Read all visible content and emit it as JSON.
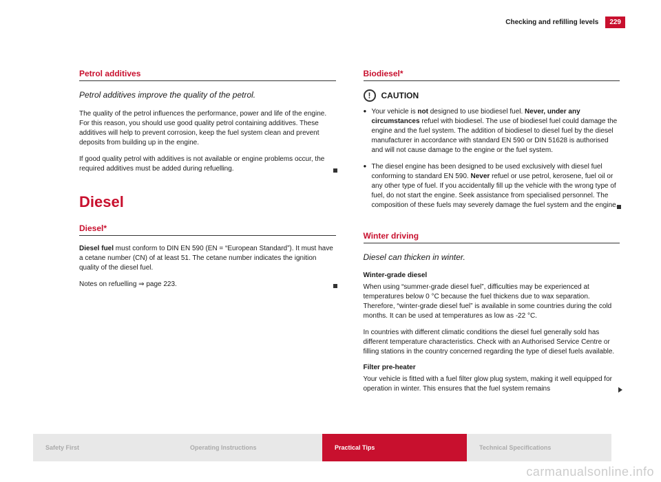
{
  "header": {
    "title": "Checking and refilling levels",
    "page_number": "229"
  },
  "left_column": {
    "section1": {
      "title": "Petrol additives",
      "subtitle": "Petrol additives improve the quality of the petrol.",
      "p1": "The quality of the petrol influences the performance, power and life of the engine. For this reason, you should use good quality petrol containing additives. These additives will help to prevent corrosion, keep the fuel system clean and prevent deposits from building up in the engine.",
      "p2": "If good quality petrol with additives is not available or engine problems occur, the required additives must be added during refuelling."
    },
    "h1": "Diesel",
    "section2": {
      "title": "Diesel*",
      "p1_pre": "Diesel fuel",
      "p1_post": " must conform to DIN EN 590 (EN = “European Standard”). It must have a cetane number (CN) of at least 51. The cetane number indicates the ignition quality of the diesel fuel.",
      "p2": "Notes on refuelling ⇒ page 223."
    }
  },
  "right_column": {
    "section1": {
      "title": "Biodiesel*",
      "caution_label": "CAUTION",
      "bullet1_pre": "Your vehicle is ",
      "bullet1_b1": "not",
      "bullet1_mid": " designed to use biodiesel fuel. ",
      "bullet1_b2": "Never, under any circumstances",
      "bullet1_post": " refuel with biodiesel. The use of biodiesel fuel could damage the engine and the fuel system. The addition of biodiesel to diesel fuel by the diesel manufacturer in accordance with standard EN 590 or DIN 51628 is authorised and will not cause damage to the engine or the fuel system.",
      "bullet2_pre": "The diesel engine has been designed to be used exclusively with diesel fuel conforming to standard EN 590. ",
      "bullet2_b1": "Never",
      "bullet2_post": " refuel or use petrol, kerosene, fuel oil or any other type of fuel. If you accidentally fill up the vehicle with the wrong type of fuel, do not start the engine. Seek assistance from specialised personnel. The composition of these fuels may severely damage the fuel system and the engine."
    },
    "section2": {
      "title": "Winter driving",
      "subtitle": "Diesel can thicken in winter.",
      "sub1": "Winter-grade diesel",
      "p1": "When using “summer-grade diesel fuel”, difficulties may be experienced at temperatures below 0 °C because the fuel thickens due to wax separation. Therefore, “winter-grade diesel fuel” is available in some countries during the cold months. It can be used at temperatures as low as -22 °C.",
      "p2": "In countries with different climatic conditions the diesel fuel generally sold has different temperature characteristics. Check with an Authorised Service Centre or filling stations in the country concerned regarding the type of diesel fuels available.",
      "sub2": "Filter pre-heater",
      "p3": "Your vehicle is fitted with a fuel filter glow plug system, making it well equipped for operation in winter. This ensures that the fuel system remains"
    }
  },
  "footer": {
    "tab1": "Safety First",
    "tab2": "Operating Instructions",
    "tab3": "Practical Tips",
    "tab4": "Technical Specifications"
  },
  "watermark": "carmanualsonline.info",
  "colors": {
    "brand_red": "#c8102e",
    "text": "#1a1a1a",
    "tab_inactive_bg": "#e8e8e8",
    "tab_inactive_text": "#aaaaaa"
  }
}
